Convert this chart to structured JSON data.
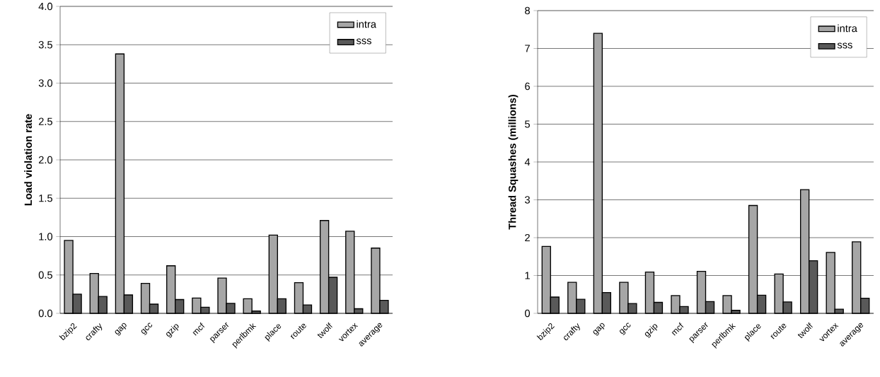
{
  "chart_data": [
    {
      "type": "bar",
      "ylabel": "Load violation rate",
      "categories": [
        "bzip2",
        "crafty",
        "gap",
        "gcc",
        "gzip",
        "mcf",
        "parser",
        "perlbmk",
        "place",
        "route",
        "twolf",
        "vortex",
        "average"
      ],
      "series": [
        {
          "name": "intra",
          "color": "#a6a6a6",
          "values": [
            0.95,
            0.52,
            3.38,
            0.39,
            0.62,
            0.2,
            0.46,
            0.19,
            1.02,
            0.4,
            1.21,
            1.07,
            0.85
          ]
        },
        {
          "name": "sss",
          "color": "#595959",
          "values": [
            0.25,
            0.22,
            0.24,
            0.12,
            0.18,
            0.08,
            0.13,
            0.03,
            0.19,
            0.11,
            0.47,
            0.06,
            0.17
          ]
        }
      ],
      "ylim": [
        0,
        4
      ],
      "yticks": [
        {
          "value": 0,
          "label": "0.0"
        },
        {
          "value": 0.5,
          "label": "0.5"
        },
        {
          "value": 1,
          "label": "1.0"
        },
        {
          "value": 1.5,
          "label": "1.5"
        },
        {
          "value": 2,
          "label": "2.0"
        },
        {
          "value": 2.5,
          "label": "2.5"
        },
        {
          "value": 3,
          "label": "3.0"
        },
        {
          "value": 3.5,
          "label": "3.5"
        },
        {
          "value": 4,
          "label": "4.0"
        }
      ],
      "grid": "y",
      "legend": "top right"
    },
    {
      "type": "bar",
      "ylabel": "Thread Squashes (millions)",
      "categories": [
        "bzip2",
        "crafty",
        "gap",
        "gcc",
        "gzip",
        "mcf",
        "parser",
        "perlbmk",
        "place",
        "route",
        "twolf",
        "vortex",
        "average"
      ],
      "series": [
        {
          "name": "intra",
          "color": "#a6a6a6",
          "values": [
            1.77,
            0.82,
            7.4,
            0.82,
            1.09,
            0.47,
            1.11,
            0.47,
            2.85,
            1.04,
            3.27,
            1.61,
            1.89
          ]
        },
        {
          "name": "sss",
          "color": "#595959",
          "values": [
            0.43,
            0.37,
            0.55,
            0.26,
            0.29,
            0.18,
            0.31,
            0.08,
            0.48,
            0.3,
            1.39,
            0.11,
            0.4
          ]
        }
      ],
      "ylim": [
        0,
        8
      ],
      "yticks": [
        0,
        1,
        2,
        3,
        4,
        5,
        6,
        7,
        8
      ],
      "grid": "y",
      "legend": "top right"
    }
  ]
}
